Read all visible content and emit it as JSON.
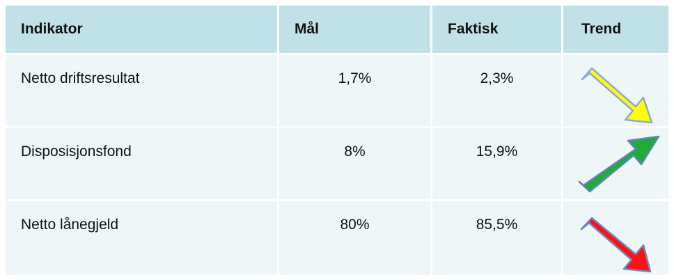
{
  "table": {
    "header": [
      "Indikator",
      "Mål",
      "Faktisk",
      "Trend"
    ],
    "rows": [
      [
        "Netto driftsresultat",
        "1,7%",
        "2,3%"
      ],
      [
        "Disposisjonsfond",
        "8%",
        "15,9%"
      ],
      [
        "Netto lånegjeld",
        "80%",
        "85,5%"
      ]
    ]
  }
}
